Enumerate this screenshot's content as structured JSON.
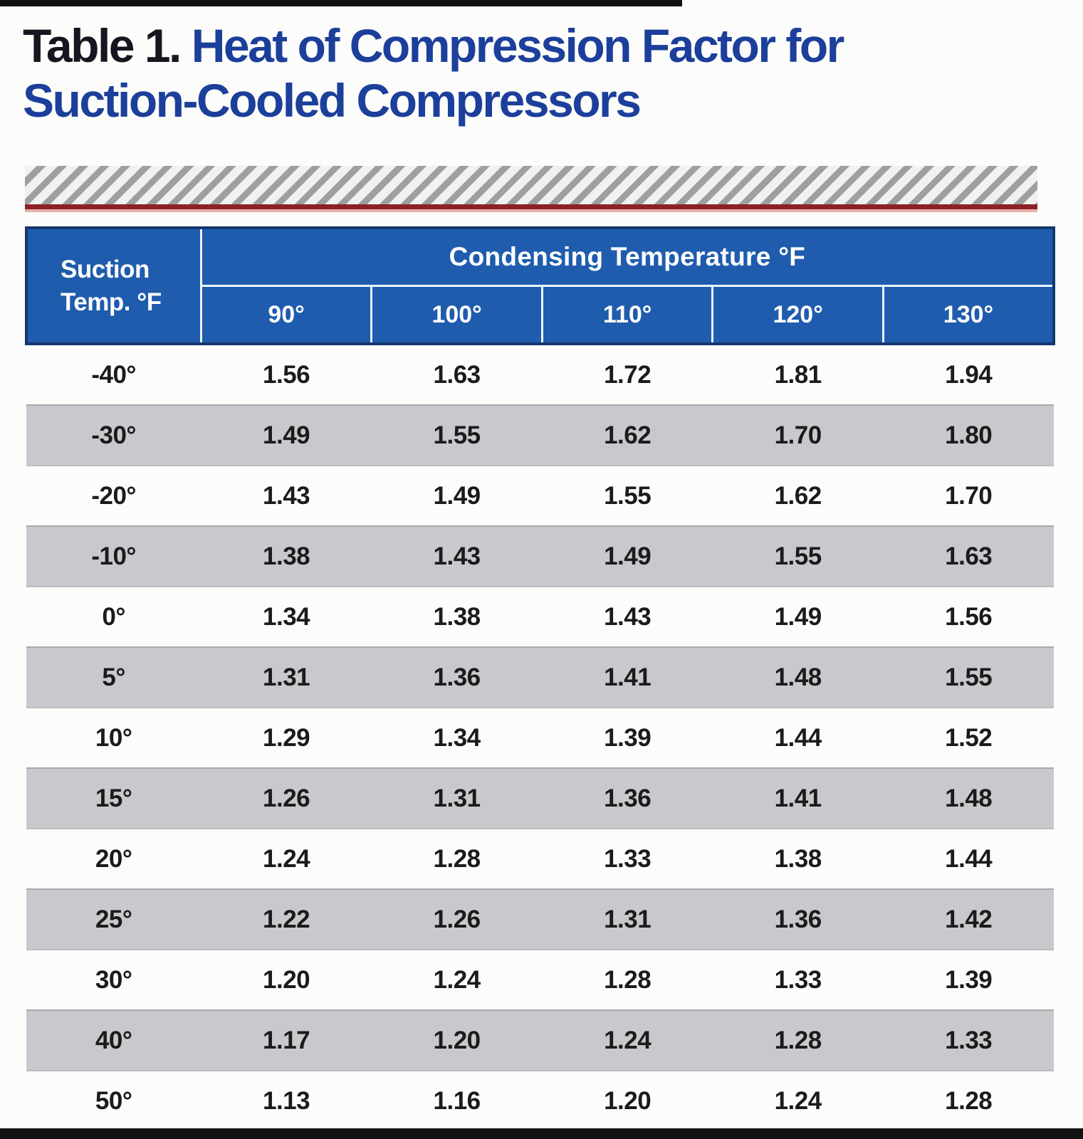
{
  "page": {
    "title_prefix": "Table 1.",
    "title_rest": "Heat of Compression Factor for",
    "title_line2": "Suction-Cooled Compressors"
  },
  "table": {
    "corner_line1": "Suction",
    "corner_line2": "Temp. °F",
    "group_header": "Condensing Temperature °F",
    "columns": [
      "90°",
      "100°",
      "110°",
      "120°",
      "130°"
    ],
    "rows": [
      {
        "label": "-40°",
        "values": [
          "1.56",
          "1.63",
          "1.72",
          "1.81",
          "1.94"
        ]
      },
      {
        "label": "-30°",
        "values": [
          "1.49",
          "1.55",
          "1.62",
          "1.70",
          "1.80"
        ]
      },
      {
        "label": "-20°",
        "values": [
          "1.43",
          "1.49",
          "1.55",
          "1.62",
          "1.70"
        ]
      },
      {
        "label": "-10°",
        "values": [
          "1.38",
          "1.43",
          "1.49",
          "1.55",
          "1.63"
        ]
      },
      {
        "label": "0°",
        "values": [
          "1.34",
          "1.38",
          "1.43",
          "1.49",
          "1.56"
        ]
      },
      {
        "label": "5°",
        "values": [
          "1.31",
          "1.36",
          "1.41",
          "1.48",
          "1.55"
        ]
      },
      {
        "label": "10°",
        "values": [
          "1.29",
          "1.34",
          "1.39",
          "1.44",
          "1.52"
        ]
      },
      {
        "label": "15°",
        "values": [
          "1.26",
          "1.31",
          "1.36",
          "1.41",
          "1.48"
        ]
      },
      {
        "label": "20°",
        "values": [
          "1.24",
          "1.28",
          "1.33",
          "1.38",
          "1.44"
        ]
      },
      {
        "label": "25°",
        "values": [
          "1.22",
          "1.26",
          "1.31",
          "1.36",
          "1.42"
        ]
      },
      {
        "label": "30°",
        "values": [
          "1.20",
          "1.24",
          "1.28",
          "1.33",
          "1.39"
        ]
      },
      {
        "label": "40°",
        "values": [
          "1.17",
          "1.20",
          "1.24",
          "1.28",
          "1.33"
        ]
      },
      {
        "label": "50°",
        "values": [
          "1.13",
          "1.16",
          "1.20",
          "1.24",
          "1.28"
        ]
      }
    ]
  },
  "colors": {
    "header_blue": "#1f5cad",
    "header_border_navy": "#16366e",
    "title_blue": "#1c3f9b",
    "title_prefix_black": "#15161f",
    "shaded_row_gray": "#c9c9cd",
    "accent_red": "#8e2127",
    "bar_black": "#101010"
  }
}
